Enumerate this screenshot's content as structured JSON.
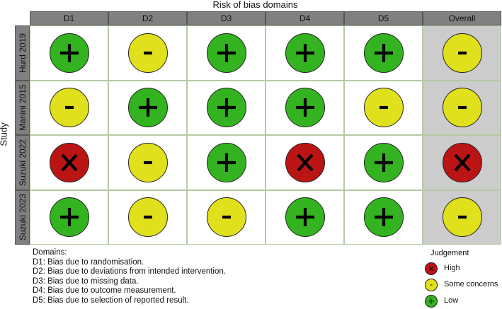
{
  "axis": {
    "domains_title": "Risk of bias domains",
    "study_title": "Study"
  },
  "columns": [
    "D1",
    "D2",
    "D3",
    "D4",
    "D5",
    "Overall"
  ],
  "studies": [
    {
      "name": "Hurd 2019",
      "judgements": [
        "low",
        "some",
        "low",
        "low",
        "low",
        "some"
      ]
    },
    {
      "name": "Manini 2015",
      "judgements": [
        "some",
        "low",
        "low",
        "low",
        "some",
        "some"
      ]
    },
    {
      "name": "Suzuki 2022",
      "judgements": [
        "high",
        "some",
        "low",
        "high",
        "low",
        "high"
      ]
    },
    {
      "name": "Suzuki 2023",
      "judgements": [
        "low",
        "some",
        "some",
        "low",
        "low",
        "some"
      ]
    }
  ],
  "domains_note": {
    "title": "Domains:",
    "items": [
      "D1: Bias due to randomisation.",
      "D2: Bias due to deviations from intended intervention.",
      "D3: Bias due to missing data.",
      "D4: Bias due to outcome measurement.",
      "D5: Bias due to selection of reported result."
    ]
  },
  "legend": {
    "title": "Judgement",
    "items": [
      {
        "key": "high",
        "label": "High"
      },
      {
        "key": "some",
        "label": "Some concerns"
      },
      {
        "key": "low",
        "label": "Low"
      }
    ]
  },
  "judgement_styles": {
    "low": {
      "color": "#33b31f",
      "symbol": "plus-icon"
    },
    "some": {
      "color": "#e1e01c",
      "symbol": "minus-icon"
    },
    "high": {
      "color": "#bb1414",
      "symbol": "cross-icon"
    }
  }
}
